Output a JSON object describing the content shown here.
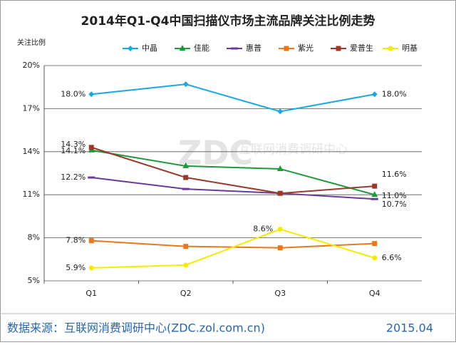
{
  "chart_data": {
    "type": "line",
    "title": "2014年Q1-Q4中国扫描仪市场主流品牌关注比例走势",
    "y_label": "关注比例",
    "categories": [
      "Q1",
      "Q2",
      "Q3",
      "Q4"
    ],
    "series": [
      {
        "name": "中晶",
        "color": "#1ba8e0",
        "marker": "diamond",
        "values": [
          18.0,
          18.7,
          16.8,
          18.0
        ],
        "value_labels": [
          "18.0%",
          null,
          null,
          "18.0%"
        ]
      },
      {
        "name": "佳能",
        "color": "#1a9a3a",
        "marker": "triangle",
        "values": [
          14.1,
          13.0,
          12.8,
          11.0
        ],
        "value_labels": [
          "14.1%",
          null,
          null,
          "11.0%"
        ]
      },
      {
        "name": "惠普",
        "color": "#6a3a9a",
        "marker": "dash",
        "values": [
          12.2,
          11.4,
          11.1,
          10.7
        ],
        "value_labels": [
          "12.2%",
          null,
          null,
          "10.7%"
        ]
      },
      {
        "name": "紫光",
        "color": "#e8781a",
        "marker": "square",
        "values": [
          7.8,
          7.4,
          7.3,
          7.6
        ],
        "value_labels": [
          "7.8%",
          null,
          null,
          null
        ]
      },
      {
        "name": "爱普生",
        "color": "#9a3a2a",
        "marker": "square",
        "values": [
          14.3,
          12.2,
          11.1,
          11.6
        ],
        "value_labels": [
          "14.3%",
          null,
          null,
          "11.6%"
        ]
      },
      {
        "name": "明基",
        "color": "#f4ec00",
        "marker": "circle",
        "values": [
          5.9,
          6.1,
          8.6,
          6.6
        ],
        "value_labels": [
          "5.9%",
          null,
          "8.6%",
          "6.6%"
        ]
      }
    ],
    "ylim": [
      5,
      20
    ],
    "yticks": [
      {
        "value": 5,
        "label": "5%"
      },
      {
        "value": 8,
        "label": "8%"
      },
      {
        "value": 11,
        "label": "11%"
      },
      {
        "value": 14,
        "label": "14%"
      },
      {
        "value": 17,
        "label": "17%"
      },
      {
        "value": 20,
        "label": "20%"
      }
    ],
    "grid": true,
    "legend": "top",
    "watermark": [
      "ZDC",
      "互联网消费调研中心"
    ],
    "source": "数据来源：互联网消费调研中心(ZDC.zol.com.cn)",
    "date": "2015.04"
  }
}
